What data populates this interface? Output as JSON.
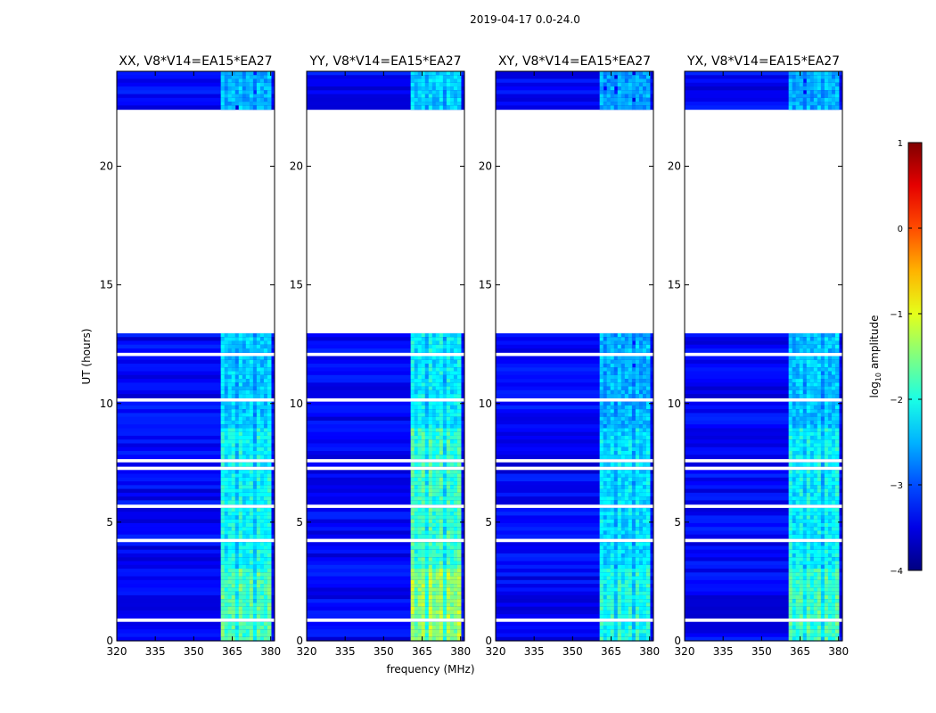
{
  "chart_data": {
    "type": "heatmap",
    "title": "2019-04-17 0.0-24.0",
    "xlabel": "frequency (MHz)",
    "ylabel": "UT (hours)",
    "xlim": [
      320,
      381.5
    ],
    "ylim": [
      0,
      24
    ],
    "xticks": [
      320,
      335,
      350,
      365,
      380
    ],
    "yticks": [
      0,
      5,
      10,
      15,
      20
    ],
    "panels": [
      {
        "title": "XX, V8*V14=EA15*EA27",
        "rfi_level": 0.55
      },
      {
        "title": "YY, V8*V14=EA15*EA27",
        "rfi_level": 0.68
      },
      {
        "title": "XY, V8*V14=EA15*EA27",
        "rfi_level": 0.45
      },
      {
        "title": "YX, V8*V14=EA15*EA27",
        "rfi_level": 0.52
      }
    ],
    "data_ranges_hours": [
      [
        0,
        13.0
      ],
      [
        22.4,
        24.0
      ]
    ],
    "rfi_band_mhz": [
      360.5,
      381.5
    ],
    "background_log10_amplitude": -3.4,
    "colorbar": {
      "label": "log10 amplitude",
      "label_main": "log",
      "label_sub": "10",
      "label_rest": " amplitude",
      "min": -4,
      "max": 1,
      "ticks": [
        -4,
        -3,
        -2,
        -1,
        0,
        1
      ],
      "tick_labels": [
        "−4",
        "−3",
        "−2",
        "−1",
        "0",
        "1"
      ]
    }
  }
}
